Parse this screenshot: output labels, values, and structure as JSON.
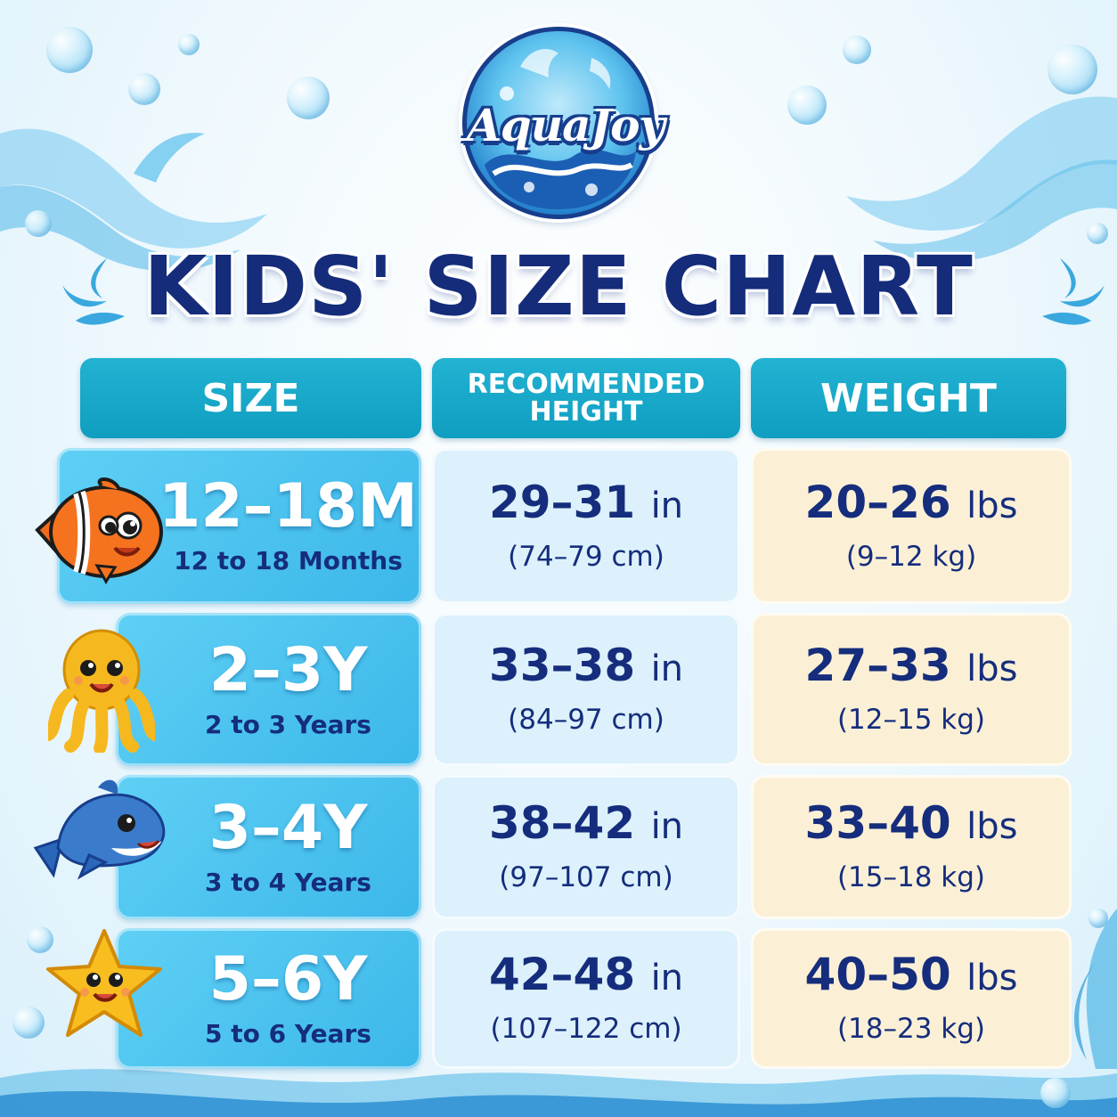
{
  "brand": {
    "logo_text": "AquaJoy"
  },
  "title": "KIDS' SIZE CHART",
  "headers": {
    "size": "SIZE",
    "height_line1": "RECOMMENDED",
    "height_line2": "HEIGHT",
    "weight": "WEIGHT"
  },
  "rows": [
    {
      "size": "12–18M",
      "size_desc": "12 to 18 Months",
      "height_in": "29–31",
      "height_unit": "in",
      "height_cm": "(74–79 cm)",
      "weight_lbs": "20–26",
      "weight_unit": "lbs",
      "weight_kg": "(9–12 kg)",
      "mascot": "clownfish-icon"
    },
    {
      "size": "2–3Y",
      "size_desc": "2 to 3 Years",
      "height_in": "33–38",
      "height_unit": "in",
      "height_cm": "(84–97 cm)",
      "weight_lbs": "27–33",
      "weight_unit": "lbs",
      "weight_kg": "(12–15 kg)",
      "mascot": "octopus-icon"
    },
    {
      "size": "3–4Y",
      "size_desc": "3 to 4 Years",
      "height_in": "38–42",
      "height_unit": "in",
      "height_cm": "(97–107 cm)",
      "weight_lbs": "33–40",
      "weight_unit": "lbs",
      "weight_kg": "(15–18 kg)",
      "mascot": "dolphin-icon"
    },
    {
      "size": "5–6Y",
      "size_desc": "5 to 6 Years",
      "height_in": "42–48",
      "height_unit": "in",
      "height_cm": "(107–122 cm)",
      "weight_lbs": "40–50",
      "weight_unit": "lbs",
      "weight_kg": "(18–23 kg)",
      "mascot": "starfish-icon"
    }
  ],
  "colors": {
    "title": "#142c7a",
    "header_bg": "#1aa9cb",
    "size_cell": "#3bb7e9",
    "height_cell": "#dcf1fb",
    "weight_cell": "#fbf0d6",
    "text_dark": "#152d7c"
  }
}
